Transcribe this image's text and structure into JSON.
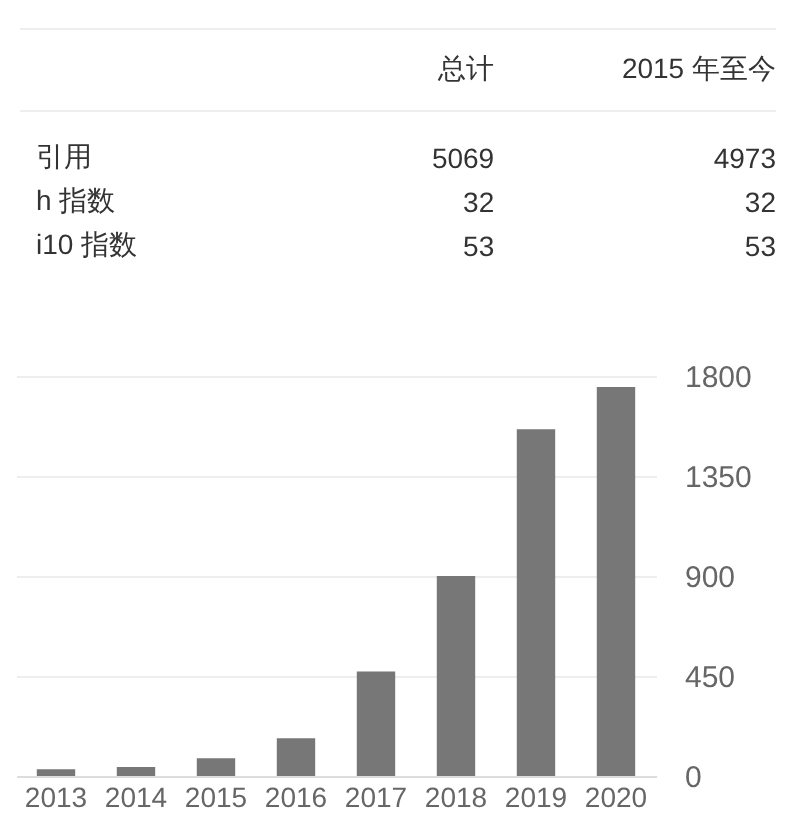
{
  "chart_data": [
    {
      "type": "other",
      "annotations": [
        "总计",
        "2015 年至今",
        "引用",
        "5069",
        "4973",
        "h 指数",
        "32",
        "32",
        "i10 指数",
        "53",
        "53"
      ]
    },
    {
      "type": "bar",
      "categories": [
        "2013",
        "2014",
        "2015",
        "2016",
        "2017",
        "2018",
        "2019",
        "2020"
      ],
      "values": [
        30,
        40,
        80,
        170,
        470,
        900,
        1560,
        1750
      ],
      "color": "#777777",
      "ylim": [
        0,
        1800
      ],
      "yticks": [
        0,
        450,
        900,
        1350,
        1800
      ],
      "grid": "y"
    }
  ]
}
